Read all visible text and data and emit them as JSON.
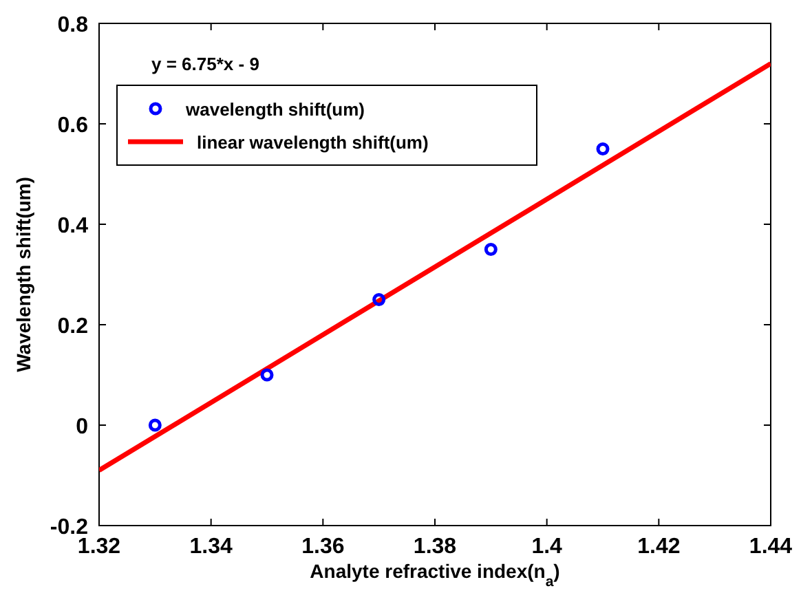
{
  "chart_data": {
    "type": "scatter",
    "xlabel": "Analyte refractive index(n$_{a}$)",
    "ylabel": "Wavelength shift(um)",
    "annotations": [
      "y = 6.75*x - 9"
    ],
    "series": [
      {
        "name": "wavelength shift(um)",
        "color": "#0000ff",
        "marker": "circle",
        "x": [
          1.33,
          1.35,
          1.37,
          1.39,
          1.41
        ],
        "values": [
          0,
          0.1,
          0.25,
          0.35,
          0.55
        ]
      },
      {
        "name": "linear wavelength shift(um)",
        "color": "#ff0000",
        "type": "line",
        "marker": "none",
        "x": [
          1.32,
          1.44
        ],
        "values": [
          -0.09,
          0.72
        ]
      }
    ],
    "xlim": [
      1.32,
      1.44
    ],
    "xticks": [
      1.32,
      1.34,
      1.36,
      1.38,
      {
        "value": 1.4,
        "label": "1.4"
      },
      1.42,
      1.44
    ],
    "ylim": [
      -0.2,
      0.8
    ],
    "yticks": [
      -0.2,
      0,
      0.2,
      0.4,
      0.6,
      0.8
    ],
    "grid": false,
    "legend": "top left"
  }
}
